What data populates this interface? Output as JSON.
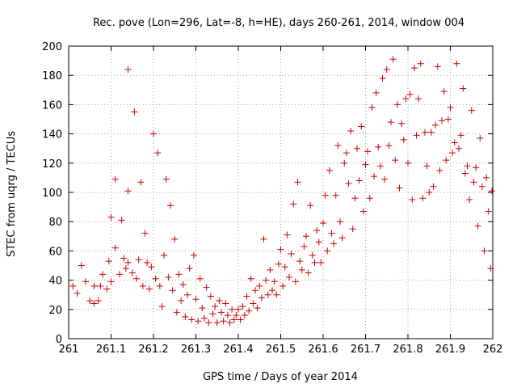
{
  "chart_data": {
    "type": "scatter",
    "title": "Rec. pove (Lon=296, Lat=-8, h=HE), days 260-261, 2014, window 004",
    "xlabel": "GPS time / Days of year 2014",
    "ylabel": "STEC from uqrg / TECUs",
    "xlim": [
      261,
      262
    ],
    "ylim": [
      0,
      200
    ],
    "xticks": [
      261,
      261.1,
      261.2,
      261.3,
      261.4,
      261.5,
      261.6,
      261.7,
      261.8,
      261.9,
      262
    ],
    "xtick_labels": [
      "261",
      "261.1",
      "261.2",
      "261.3",
      "261.4",
      "261.5",
      "261.6",
      "261.7",
      "261.8",
      "261.9",
      "262"
    ],
    "yticks": [
      0,
      20,
      40,
      60,
      80,
      100,
      120,
      140,
      160,
      180,
      200
    ],
    "ytick_labels": [
      "0",
      "20",
      "40",
      "60",
      "80",
      "100",
      "120",
      "140",
      "160",
      "180",
      "200"
    ],
    "grid": true,
    "marker": "+",
    "color": "#cc0000",
    "series": [
      {
        "name": "STEC",
        "points": [
          [
            261.01,
            36
          ],
          [
            261.02,
            31
          ],
          [
            261.03,
            50
          ],
          [
            261.04,
            39
          ],
          [
            261.05,
            26
          ],
          [
            261.06,
            24
          ],
          [
            261.06,
            36
          ],
          [
            261.07,
            26
          ],
          [
            261.075,
            36
          ],
          [
            261.08,
            44
          ],
          [
            261.09,
            34
          ],
          [
            261.095,
            53
          ],
          [
            261.1,
            39
          ],
          [
            261.1,
            83
          ],
          [
            261.11,
            62
          ],
          [
            261.11,
            109
          ],
          [
            261.12,
            44
          ],
          [
            261.125,
            81
          ],
          [
            261.13,
            55
          ],
          [
            261.135,
            48
          ],
          [
            261.14,
            52
          ],
          [
            261.14,
            101
          ],
          [
            261.14,
            184
          ],
          [
            261.15,
            45
          ],
          [
            261.155,
            155
          ],
          [
            261.16,
            41
          ],
          [
            261.165,
            54
          ],
          [
            261.17,
            107
          ],
          [
            261.175,
            36
          ],
          [
            261.18,
            72
          ],
          [
            261.185,
            52
          ],
          [
            261.19,
            34
          ],
          [
            261.195,
            49
          ],
          [
            261.2,
            140
          ],
          [
            261.205,
            41
          ],
          [
            261.21,
            127
          ],
          [
            261.215,
            36
          ],
          [
            261.22,
            22
          ],
          [
            261.225,
            57
          ],
          [
            261.23,
            109
          ],
          [
            261.235,
            42
          ],
          [
            261.24,
            91
          ],
          [
            261.245,
            33
          ],
          [
            261.25,
            68
          ],
          [
            261.255,
            18
          ],
          [
            261.26,
            44
          ],
          [
            261.265,
            26
          ],
          [
            261.27,
            37
          ],
          [
            261.275,
            15
          ],
          [
            261.28,
            30
          ],
          [
            261.285,
            48
          ],
          [
            261.29,
            13
          ],
          [
            261.295,
            57
          ],
          [
            261.3,
            27
          ],
          [
            261.305,
            12
          ],
          [
            261.31,
            41
          ],
          [
            261.315,
            21
          ],
          [
            261.32,
            14
          ],
          [
            261.325,
            35
          ],
          [
            261.33,
            11
          ],
          [
            261.335,
            29
          ],
          [
            261.34,
            17
          ],
          [
            261.345,
            22
          ],
          [
            261.35,
            11
          ],
          [
            261.355,
            26
          ],
          [
            261.36,
            18
          ],
          [
            261.365,
            12
          ],
          [
            261.37,
            24
          ],
          [
            261.375,
            16
          ],
          [
            261.38,
            11
          ],
          [
            261.385,
            20
          ],
          [
            261.39,
            13
          ],
          [
            261.395,
            16
          ],
          [
            261.4,
            20
          ],
          [
            261.405,
            13
          ],
          [
            261.41,
            22
          ],
          [
            261.415,
            16
          ],
          [
            261.42,
            29
          ],
          [
            261.425,
            19
          ],
          [
            261.43,
            41
          ],
          [
            261.435,
            24
          ],
          [
            261.44,
            33
          ],
          [
            261.445,
            21
          ],
          [
            261.45,
            36
          ],
          [
            261.455,
            28
          ],
          [
            261.46,
            68
          ],
          [
            261.465,
            40
          ],
          [
            261.47,
            30
          ],
          [
            261.475,
            47
          ],
          [
            261.48,
            33
          ],
          [
            261.485,
            39
          ],
          [
            261.49,
            30
          ],
          [
            261.495,
            51
          ],
          [
            261.5,
            61
          ],
          [
            261.505,
            36
          ],
          [
            261.51,
            49
          ],
          [
            261.515,
            71
          ],
          [
            261.52,
            42
          ],
          [
            261.525,
            58
          ],
          [
            261.53,
            92
          ],
          [
            261.535,
            39
          ],
          [
            261.54,
            107
          ],
          [
            261.545,
            53
          ],
          [
            261.55,
            47
          ],
          [
            261.555,
            63
          ],
          [
            261.56,
            70
          ],
          [
            261.565,
            45
          ],
          [
            261.57,
            91
          ],
          [
            261.575,
            57
          ],
          [
            261.58,
            52
          ],
          [
            261.585,
            74
          ],
          [
            261.59,
            66
          ],
          [
            261.595,
            52
          ],
          [
            261.6,
            79
          ],
          [
            261.605,
            98
          ],
          [
            261.61,
            60
          ],
          [
            261.615,
            115
          ],
          [
            261.62,
            72
          ],
          [
            261.625,
            65
          ],
          [
            261.63,
            98
          ],
          [
            261.635,
            132
          ],
          [
            261.64,
            80
          ],
          [
            261.645,
            69
          ],
          [
            261.65,
            120
          ],
          [
            261.655,
            127
          ],
          [
            261.66,
            106
          ],
          [
            261.665,
            142
          ],
          [
            261.67,
            75
          ],
          [
            261.675,
            96
          ],
          [
            261.68,
            130
          ],
          [
            261.685,
            108
          ],
          [
            261.69,
            145
          ],
          [
            261.695,
            87
          ],
          [
            261.7,
            119
          ],
          [
            261.705,
            128
          ],
          [
            261.71,
            96
          ],
          [
            261.715,
            158
          ],
          [
            261.72,
            111
          ],
          [
            261.725,
            168
          ],
          [
            261.73,
            131
          ],
          [
            261.735,
            118
          ],
          [
            261.74,
            178
          ],
          [
            261.745,
            109
          ],
          [
            261.75,
            184
          ],
          [
            261.755,
            132
          ],
          [
            261.76,
            148
          ],
          [
            261.765,
            191
          ],
          [
            261.77,
            122
          ],
          [
            261.775,
            160
          ],
          [
            261.78,
            103
          ],
          [
            261.785,
            147
          ],
          [
            261.79,
            136
          ],
          [
            261.795,
            164
          ],
          [
            261.8,
            120
          ],
          [
            261.805,
            167
          ],
          [
            261.81,
            95
          ],
          [
            261.815,
            185
          ],
          [
            261.82,
            139
          ],
          [
            261.825,
            164
          ],
          [
            261.83,
            188
          ],
          [
            261.835,
            96
          ],
          [
            261.84,
            141
          ],
          [
            261.845,
            118
          ],
          [
            261.85,
            100
          ],
          [
            261.855,
            141
          ],
          [
            261.86,
            104
          ],
          [
            261.865,
            146
          ],
          [
            261.87,
            186
          ],
          [
            261.875,
            115
          ],
          [
            261.88,
            149
          ],
          [
            261.885,
            169
          ],
          [
            261.89,
            122
          ],
          [
            261.895,
            150
          ],
          [
            261.9,
            158
          ],
          [
            261.905,
            127
          ],
          [
            261.91,
            134
          ],
          [
            261.915,
            188
          ],
          [
            261.92,
            130
          ],
          [
            261.925,
            139
          ],
          [
            261.93,
            171
          ],
          [
            261.935,
            113
          ],
          [
            261.94,
            118
          ],
          [
            261.945,
            95
          ],
          [
            261.95,
            156
          ],
          [
            261.955,
            107
          ],
          [
            261.96,
            117
          ],
          [
            261.965,
            77
          ],
          [
            261.97,
            137
          ],
          [
            261.975,
            104
          ],
          [
            261.98,
            60
          ],
          [
            261.985,
            110
          ],
          [
            261.99,
            87
          ],
          [
            261.995,
            48
          ],
          [
            261.998,
            101
          ]
        ]
      }
    ]
  }
}
